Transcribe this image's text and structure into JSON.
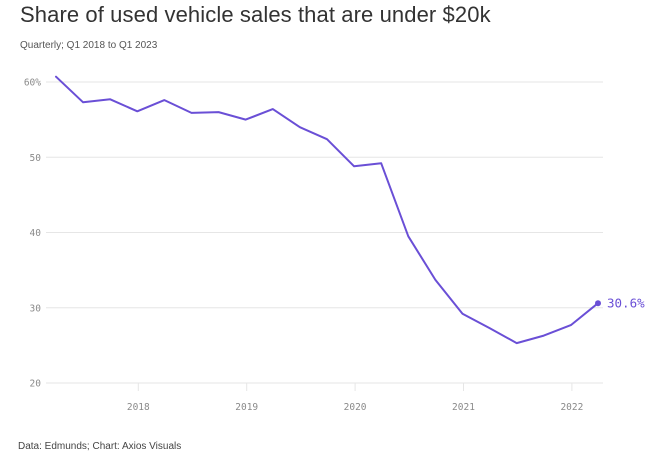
{
  "header": {
    "title": "Share of used vehicle sales that are under $20k",
    "subtitle": "Quarterly; Q1 2018 to Q1 2023"
  },
  "footer": {
    "source": "Data: Edmunds; Chart: Axios Visuals"
  },
  "colors": {
    "line": "#6a4fd6",
    "grid": "#e6e6e6",
    "tick_text": "#8a8a8a"
  },
  "chart_data": {
    "type": "line",
    "title": "Share of used vehicle sales that are under $20k",
    "subtitle": "Quarterly; Q1 2018 to Q1 2023",
    "xlabel": "",
    "ylabel": "",
    "ylim": [
      20,
      60
    ],
    "yticks": [
      60,
      50,
      40,
      30,
      20
    ],
    "ytick_labels": [
      "60%",
      "50",
      "40",
      "30",
      "20"
    ],
    "xtick_labels": [
      "2018",
      "2019",
      "2020",
      "2021",
      "2022"
    ],
    "xtick_indices": [
      3,
      7,
      11,
      15,
      19
    ],
    "grid": true,
    "legend": "none",
    "series": [
      {
        "name": "Share under $20k",
        "x": [
          "Q1 2018",
          "Q2 2018",
          "Q3 2018",
          "Q4 2018",
          "Q1 2019",
          "Q2 2019",
          "Q3 2019",
          "Q4 2019",
          "Q1 2020",
          "Q2 2020",
          "Q3 2020",
          "Q4 2020",
          "Q1 2021",
          "Q2 2021",
          "Q3 2021",
          "Q4 2021",
          "Q1 2022",
          "Q2 2022",
          "Q3 2022",
          "Q4 2022",
          "Q1 2023"
        ],
        "values": [
          60.7,
          57.3,
          57.7,
          56.1,
          57.6,
          55.9,
          56.0,
          55.0,
          56.4,
          54.0,
          52.4,
          48.8,
          49.2,
          39.5,
          33.7,
          29.2,
          27.3,
          25.3,
          26.3,
          27.7,
          30.6
        ]
      }
    ],
    "annotations": [
      {
        "text": "30.6%",
        "point_index": 20
      }
    ]
  }
}
